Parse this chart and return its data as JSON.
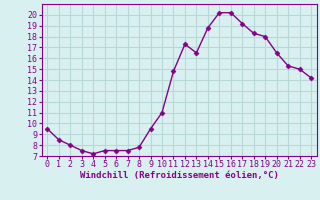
{
  "x": [
    0,
    1,
    2,
    3,
    4,
    5,
    6,
    7,
    8,
    9,
    10,
    11,
    12,
    13,
    14,
    15,
    16,
    17,
    18,
    19,
    20,
    21,
    22,
    23
  ],
  "y": [
    9.5,
    8.5,
    8.0,
    7.5,
    7.2,
    7.5,
    7.5,
    7.5,
    7.8,
    9.5,
    11.0,
    14.8,
    17.3,
    16.5,
    18.8,
    20.2,
    20.2,
    19.2,
    18.3,
    18.0,
    16.5,
    15.3,
    15.0,
    14.2
  ],
  "line_color": "#880088",
  "marker": "D",
  "markersize": 2.5,
  "linewidth": 1.0,
  "background_color": "#d8f0f0",
  "grid_color": "#b8d8d8",
  "xlabel": "Windchill (Refroidissement éolien,°C)",
  "xlabel_fontsize": 6.5,
  "tick_fontsize": 6.0,
  "ylim": [
    7,
    21
  ],
  "xlim": [
    -0.5,
    23.5
  ],
  "yticks": [
    7,
    8,
    9,
    10,
    11,
    12,
    13,
    14,
    15,
    16,
    17,
    18,
    19,
    20
  ],
  "xticks": [
    0,
    1,
    2,
    3,
    4,
    5,
    6,
    7,
    8,
    9,
    10,
    11,
    12,
    13,
    14,
    15,
    16,
    17,
    18,
    19,
    20,
    21,
    22,
    23
  ]
}
